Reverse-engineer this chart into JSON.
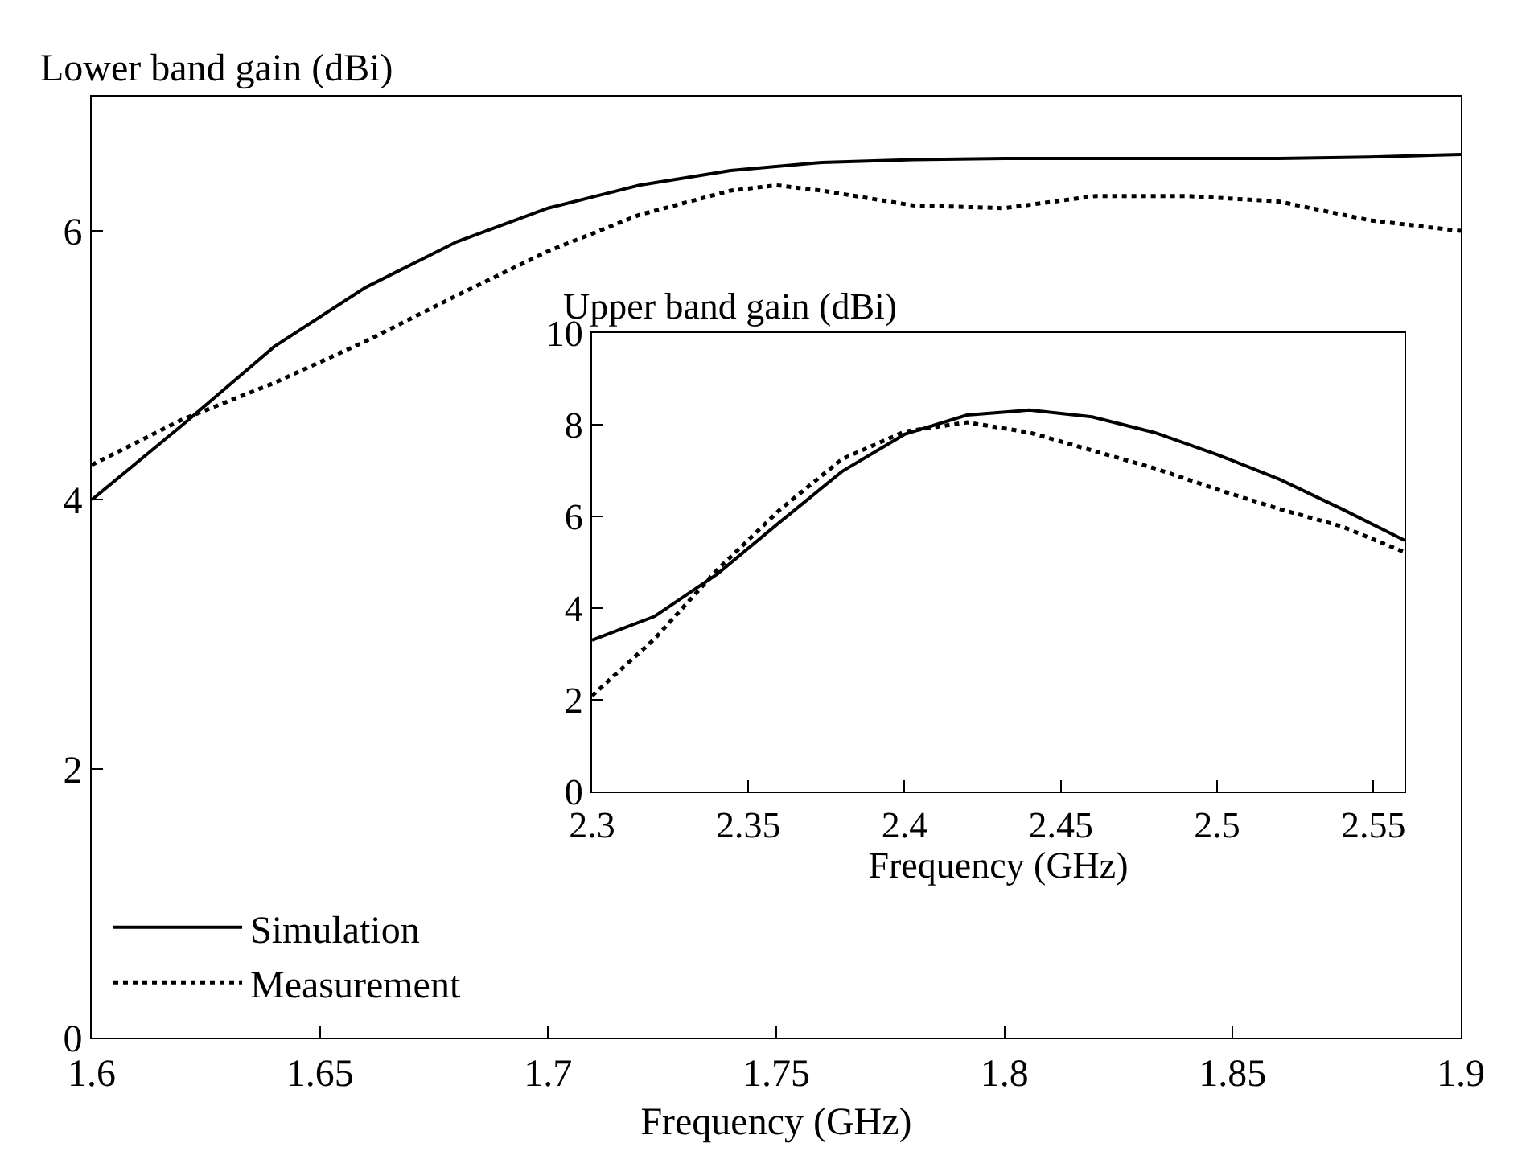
{
  "chart_data": [
    {
      "type": "line",
      "ylabel": "Lower band gain (dBi)",
      "xlabel": "Frequency (GHz)",
      "xlim": [
        1.6,
        1.9
      ],
      "xticks": [
        1.6,
        1.65,
        1.7,
        1.75,
        1.8,
        1.85,
        1.9
      ],
      "ylim": [
        0,
        7
      ],
      "yticks": [
        0,
        2,
        4,
        6
      ],
      "grid": false,
      "legend": "bottom left",
      "series": [
        {
          "name": "Simulation",
          "color": "#000000",
          "line_style": "solid",
          "x": [
            1.6,
            1.62,
            1.64,
            1.66,
            1.68,
            1.7,
            1.72,
            1.74,
            1.76,
            1.78,
            1.8,
            1.82,
            1.84,
            1.86,
            1.88,
            1.9
          ],
          "values": [
            4.0,
            4.56,
            5.14,
            5.58,
            5.92,
            6.17,
            6.34,
            6.45,
            6.51,
            6.53,
            6.54,
            6.54,
            6.54,
            6.54,
            6.55,
            6.57
          ]
        },
        {
          "name": "Measurement",
          "color": "#000000",
          "line_style": "dotted",
          "x": [
            1.6,
            1.62,
            1.64,
            1.66,
            1.68,
            1.7,
            1.72,
            1.74,
            1.75,
            1.76,
            1.78,
            1.8,
            1.82,
            1.84,
            1.86,
            1.88,
            1.9
          ],
          "values": [
            4.26,
            4.6,
            4.87,
            5.18,
            5.52,
            5.85,
            6.12,
            6.3,
            6.34,
            6.3,
            6.19,
            6.17,
            6.26,
            6.26,
            6.22,
            6.08,
            6.0
          ]
        }
      ]
    },
    {
      "type": "line",
      "ylabel": "Upper band gain (dBi)",
      "xlabel": "Frequency (GHz)",
      "xlim": [
        2.3,
        2.56
      ],
      "xticks": [
        2.3,
        2.35,
        2.4,
        2.45,
        2.5,
        2.55
      ],
      "ylim": [
        0,
        10
      ],
      "yticks": [
        0,
        2,
        4,
        6,
        8,
        10
      ],
      "grid": false,
      "series": [
        {
          "color": "#000000",
          "line_style": "solid",
          "x": [
            2.3,
            2.32,
            2.34,
            2.36,
            2.38,
            2.4,
            2.42,
            2.44,
            2.46,
            2.48,
            2.5,
            2.52,
            2.54,
            2.56
          ],
          "values": [
            3.3,
            3.82,
            4.74,
            5.87,
            6.98,
            7.79,
            8.21,
            8.32,
            8.17,
            7.83,
            7.35,
            6.81,
            6.16,
            5.48
          ]
        },
        {
          "color": "#000000",
          "line_style": "dotted",
          "x": [
            2.3,
            2.32,
            2.34,
            2.36,
            2.38,
            2.4,
            2.42,
            2.44,
            2.46,
            2.48,
            2.5,
            2.52,
            2.54,
            2.56
          ],
          "values": [
            2.09,
            3.33,
            4.83,
            6.14,
            7.25,
            7.85,
            8.05,
            7.83,
            7.44,
            7.05,
            6.59,
            6.16,
            5.78,
            5.22
          ]
        }
      ]
    }
  ]
}
